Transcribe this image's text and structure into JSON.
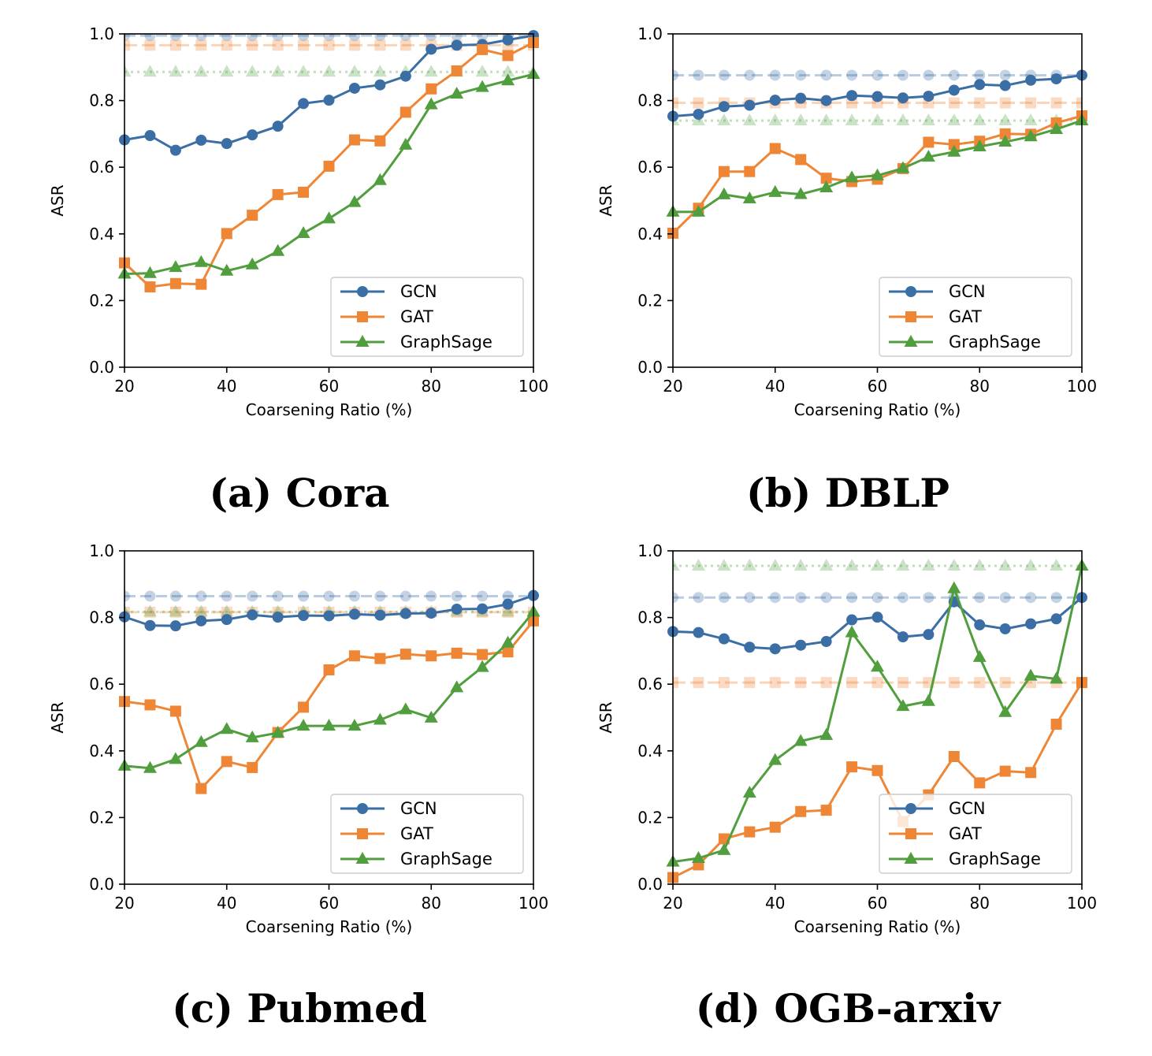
{
  "panels": [
    {
      "caption": "(a) Cora"
    },
    {
      "caption": "(b) DBLP"
    },
    {
      "caption": "(c) Pubmed"
    },
    {
      "caption": "(d) OGB-arxiv"
    }
  ],
  "chart_data": [
    {
      "type": "line",
      "xlabel": "Coarsening Ratio (%)",
      "ylabel": "ASR",
      "xlim": [
        20,
        100
      ],
      "ylim": [
        0,
        1
      ],
      "xticks": [
        "20",
        "40",
        "60",
        "80",
        "100"
      ],
      "yticks": [
        "0.0",
        "0.2",
        "0.4",
        "0.6",
        "0.8",
        "1.0"
      ],
      "grid": false,
      "legend": "lower right",
      "x": [
        20,
        25,
        30,
        35,
        40,
        45,
        50,
        55,
        60,
        65,
        70,
        75,
        80,
        85,
        90,
        95,
        100
      ],
      "series": [
        {
          "name": "GCN",
          "color": "#3a6ea5",
          "marker": "circle",
          "baseline": 0.995,
          "values": [
            0.682,
            0.695,
            0.651,
            0.681,
            0.671,
            0.697,
            0.723,
            0.791,
            0.801,
            0.837,
            0.847,
            0.873,
            0.954,
            0.966,
            0.968,
            0.982,
            0.995
          ]
        },
        {
          "name": "GAT",
          "color": "#ef8636",
          "marker": "square",
          "baseline": 0.966,
          "values": [
            0.313,
            0.241,
            0.251,
            0.249,
            0.401,
            0.456,
            0.518,
            0.525,
            0.603,
            0.682,
            0.679,
            0.765,
            0.835,
            0.889,
            0.953,
            0.935,
            0.974
          ]
        },
        {
          "name": "GraphSage",
          "color": "#519e3e",
          "marker": "triangle",
          "baseline": 0.886,
          "values": [
            0.28,
            0.282,
            0.3,
            0.315,
            0.289,
            0.308,
            0.348,
            0.402,
            0.446,
            0.495,
            0.561,
            0.667,
            0.788,
            0.82,
            0.84,
            0.86,
            0.879
          ]
        }
      ]
    },
    {
      "type": "line",
      "xlabel": "Coarsening Ratio (%)",
      "ylabel": "ASR",
      "xlim": [
        20,
        100
      ],
      "ylim": [
        0,
        1
      ],
      "xticks": [
        "20",
        "40",
        "60",
        "80",
        "100"
      ],
      "yticks": [
        "0.0",
        "0.2",
        "0.4",
        "0.6",
        "0.8",
        "1.0"
      ],
      "grid": false,
      "legend": "lower right",
      "x": [
        20,
        25,
        30,
        35,
        40,
        45,
        50,
        55,
        60,
        65,
        70,
        75,
        80,
        85,
        90,
        95,
        100
      ],
      "series": [
        {
          "name": "GCN",
          "color": "#3a6ea5",
          "marker": "circle",
          "baseline": 0.876,
          "values": [
            0.753,
            0.759,
            0.782,
            0.786,
            0.801,
            0.807,
            0.8,
            0.815,
            0.812,
            0.808,
            0.813,
            0.831,
            0.848,
            0.845,
            0.861,
            0.865,
            0.876
          ]
        },
        {
          "name": "GAT",
          "color": "#ef8636",
          "marker": "square",
          "baseline": 0.793,
          "values": [
            0.402,
            0.477,
            0.587,
            0.587,
            0.656,
            0.623,
            0.567,
            0.557,
            0.564,
            0.596,
            0.675,
            0.668,
            0.678,
            0.7,
            0.699,
            0.733,
            0.754
          ]
        },
        {
          "name": "GraphSage",
          "color": "#519e3e",
          "marker": "triangle",
          "baseline": 0.74,
          "values": [
            0.466,
            0.466,
            0.518,
            0.506,
            0.525,
            0.519,
            0.539,
            0.569,
            0.575,
            0.597,
            0.631,
            0.646,
            0.662,
            0.676,
            0.692,
            0.714,
            0.74
          ]
        }
      ]
    },
    {
      "type": "line",
      "xlabel": "Coarsening Ratio (%)",
      "ylabel": "ASR",
      "xlim": [
        20,
        100
      ],
      "ylim": [
        0,
        1
      ],
      "xticks": [
        "20",
        "40",
        "60",
        "80",
        "100"
      ],
      "yticks": [
        "0.0",
        "0.2",
        "0.4",
        "0.6",
        "0.8",
        "1.0"
      ],
      "grid": false,
      "legend": "lower right",
      "x": [
        20,
        25,
        30,
        35,
        40,
        45,
        50,
        55,
        60,
        65,
        70,
        75,
        80,
        85,
        90,
        95,
        100
      ],
      "series": [
        {
          "name": "GCN",
          "color": "#3a6ea5",
          "marker": "circle",
          "baseline": 0.864,
          "values": [
            0.802,
            0.776,
            0.775,
            0.79,
            0.794,
            0.808,
            0.801,
            0.806,
            0.805,
            0.81,
            0.807,
            0.812,
            0.813,
            0.825,
            0.826,
            0.84,
            0.866
          ]
        },
        {
          "name": "GAT",
          "color": "#ef8636",
          "marker": "square",
          "baseline": 0.816,
          "values": [
            0.548,
            0.538,
            0.519,
            0.287,
            0.368,
            0.35,
            0.455,
            0.531,
            0.643,
            0.685,
            0.677,
            0.69,
            0.685,
            0.693,
            0.689,
            0.697,
            0.79
          ]
        },
        {
          "name": "GraphSage",
          "color": "#519e3e",
          "marker": "triangle",
          "baseline": 0.817,
          "values": [
            0.355,
            0.348,
            0.375,
            0.426,
            0.465,
            0.44,
            0.454,
            0.475,
            0.475,
            0.475,
            0.493,
            0.524,
            0.499,
            0.59,
            0.651,
            0.724,
            0.817
          ]
        }
      ]
    },
    {
      "type": "line",
      "xlabel": "Coarsening Ratio (%)",
      "ylabel": "ASR",
      "xlim": [
        20,
        100
      ],
      "ylim": [
        0,
        1
      ],
      "xticks": [
        "20",
        "40",
        "60",
        "80",
        "100"
      ],
      "yticks": [
        "0.0",
        "0.2",
        "0.4",
        "0.6",
        "0.8",
        "1.0"
      ],
      "grid": false,
      "legend": "lower right",
      "x": [
        20,
        25,
        30,
        35,
        40,
        45,
        50,
        55,
        60,
        65,
        70,
        75,
        80,
        85,
        90,
        95,
        100
      ],
      "series": [
        {
          "name": "GCN",
          "color": "#3a6ea5",
          "marker": "circle",
          "baseline": 0.86,
          "values": [
            0.758,
            0.755,
            0.736,
            0.711,
            0.706,
            0.717,
            0.728,
            0.793,
            0.801,
            0.742,
            0.749,
            0.847,
            0.778,
            0.766,
            0.781,
            0.796,
            0.86
          ]
        },
        {
          "name": "GAT",
          "color": "#ef8636",
          "marker": "square",
          "baseline": 0.605,
          "values": [
            0.02,
            0.058,
            0.136,
            0.157,
            0.171,
            0.218,
            0.222,
            0.352,
            0.341,
            0.188,
            0.268,
            0.383,
            0.304,
            0.339,
            0.335,
            0.48,
            0.605
          ]
        },
        {
          "name": "GraphSage",
          "color": "#519e3e",
          "marker": "triangle",
          "baseline": 0.955,
          "values": [
            0.067,
            0.078,
            0.102,
            0.274,
            0.372,
            0.429,
            0.447,
            0.755,
            0.652,
            0.534,
            0.549,
            0.887,
            0.681,
            0.516,
            0.625,
            0.616,
            0.955
          ]
        }
      ]
    }
  ]
}
